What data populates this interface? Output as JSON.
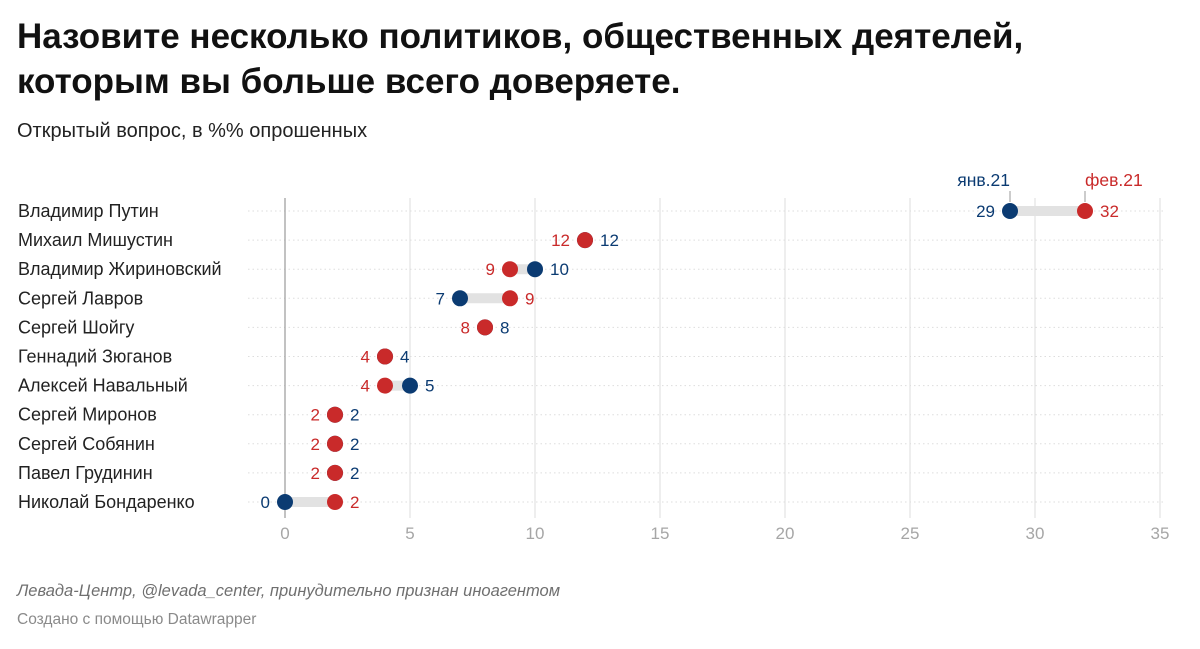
{
  "title": "Назовите несколько политиков, общественных деятелей, которым вы больше всего доверяете.",
  "subtitle": "Открытый вопрос, в %% опрошенных",
  "source": "Левада-Центр, @levada_center, принудительно признан иноагентом",
  "credit": "Создано с помощью Datawrapper",
  "colors": {
    "jan": "#0b3b72",
    "feb": "#c92a2a",
    "range": "#e2e2e2",
    "grid": "#dddddd",
    "zero": "#9a9a9a"
  },
  "chart_data": {
    "type": "dot-range",
    "xlim": [
      0,
      35
    ],
    "ticks": [
      0,
      5,
      10,
      15,
      20,
      25,
      30,
      35
    ],
    "tick_labels": [
      "0",
      "5",
      "10",
      "15",
      "20",
      "25",
      "30",
      "35"
    ],
    "series": [
      {
        "name": "янв.21",
        "key": "jan"
      },
      {
        "name": "фев.21",
        "key": "feb"
      }
    ],
    "categories": [
      "Владимир Путин",
      "Михаил Мишустин",
      "Владимир Жириновский",
      "Сергей Лавров",
      "Сергей Шойгу",
      "Геннадий Зюганов",
      "Алексей Навальный",
      "Сергей Миронов",
      "Сергей Собянин",
      "Павел Грудинин",
      "Николай Бондаренко"
    ],
    "jan": [
      29,
      12,
      10,
      7,
      8,
      4,
      5,
      2,
      2,
      2,
      0
    ],
    "feb": [
      32,
      12,
      9,
      9,
      8,
      4,
      4,
      2,
      2,
      2,
      2
    ]
  }
}
